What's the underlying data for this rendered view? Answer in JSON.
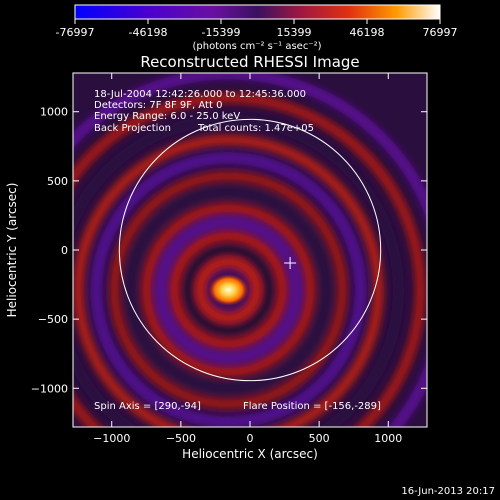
{
  "colorbar": {
    "ticks": [
      "-76997",
      "-46198",
      "-15399",
      "15399",
      "46198",
      "76997"
    ],
    "unit_label": "(photons cm⁻² s⁻¹ asec⁻²)",
    "range": [
      -76997,
      76997
    ]
  },
  "title": "Reconstructed RHESSI Image",
  "info_lines": {
    "time": "18-Jul-2004 12:42:26.000 to 12:45:36.000",
    "detectors": "Detectors: 7F 8F 9F, Att 0",
    "energy": "Energy Range: 6.0 - 25.0 keV",
    "method": "Back Projection",
    "counts": "Total counts: 1.47e+05"
  },
  "footer_labels": {
    "spin_axis": "Spin Axis = [290,-94]",
    "flare_position": "Flare Position = [-156,-289]"
  },
  "x_axis": {
    "label": "Heliocentric X (arcsec)",
    "range": [
      -1280,
      1280
    ],
    "ticks": [
      {
        "value": -1000,
        "label": "−1000"
      },
      {
        "value": -500,
        "label": "−500"
      },
      {
        "value": 0,
        "label": "0"
      },
      {
        "value": 500,
        "label": "500"
      },
      {
        "value": 1000,
        "label": "1000"
      }
    ]
  },
  "y_axis": {
    "label": "Heliocentric Y (arcsec)",
    "range": [
      -1280,
      1280
    ],
    "ticks": [
      {
        "value": 1000,
        "label": "1000"
      },
      {
        "value": 500,
        "label": "500"
      },
      {
        "value": 0,
        "label": "0"
      },
      {
        "value": -500,
        "label": "−500"
      },
      {
        "value": -1000,
        "label": "−1000"
      }
    ]
  },
  "solar_disk": {
    "center_x": 0,
    "center_y": 0,
    "radius": 945
  },
  "spin_axis_marker": {
    "x": 290,
    "y": -94
  },
  "flare_source": {
    "x": -156,
    "y": -289
  },
  "timestamp": "16-Jun-2013 20:17",
  "colors": {
    "background": "#000000",
    "foreground": "#ffffff",
    "colormap": [
      "#0000ff",
      "#5a00b4",
      "#3a1060",
      "#7a1a60",
      "#d02010",
      "#ff7a00",
      "#ffffff"
    ]
  }
}
